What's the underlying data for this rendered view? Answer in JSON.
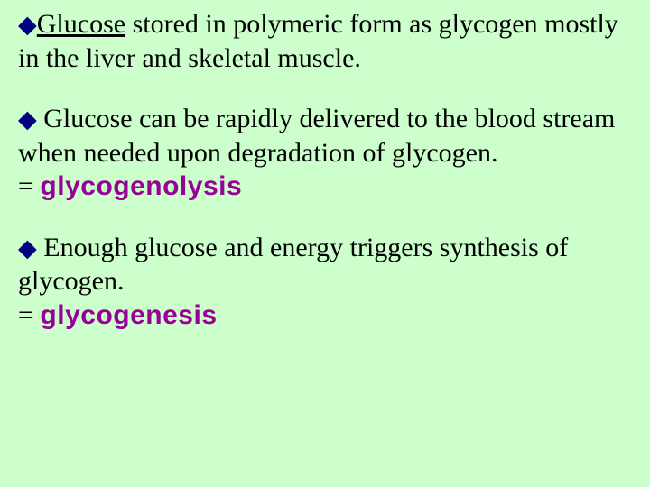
{
  "background_color": "#ccffcc",
  "bullet_color": "#000080",
  "highlight_color": "#990099",
  "body_font_size": 30,
  "highlight_font_size": 30,
  "bullet_glyph": "◆",
  "blocks": {
    "b1_bullet": "◆",
    "b1_text_u": "Glucose",
    "b1_text_rest": " stored in polymeric form as glycogen mostly in the liver and skeletal muscle.",
    "b2_bullet": "◆",
    "b2_text": " Glucose can be rapidly delivered to the blood stream when needed upon degradation of glycogen.",
    "b2_eq": "= ",
    "b2_term": "glycogenolysis",
    "b3_bullet": "◆",
    "b3_text": " Enough glucose and energy triggers synthesis of glycogen.",
    "b3_eq": "= ",
    "b3_term": "glycogenesis"
  }
}
